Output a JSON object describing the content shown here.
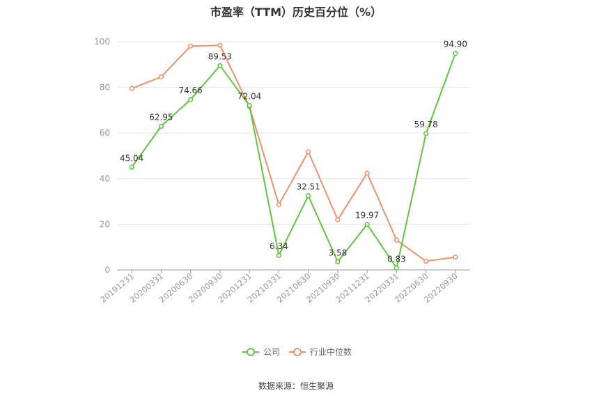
{
  "chart_data": {
    "type": "line",
    "title": "市盈率（TTM）历史百分位（%）",
    "categories": [
      "20191231",
      "20200331",
      "20200630",
      "20200930",
      "20201231",
      "20210331",
      "20210630",
      "20210930",
      "20211231",
      "20220331",
      "20220630",
      "20220930"
    ],
    "ylim": [
      0,
      100
    ],
    "yticks": [
      0,
      20,
      40,
      60,
      80,
      100
    ],
    "grid": true,
    "legend_position": "bottom",
    "series": [
      {
        "name": "公司",
        "color": "#5cc73c",
        "show_labels": true,
        "values": [
          45.04,
          62.95,
          74.66,
          89.53,
          72.04,
          6.34,
          32.51,
          3.58,
          19.97,
          0.83,
          59.78,
          94.9
        ],
        "labels": [
          "45.04",
          "62.95",
          "74.66",
          "89.53",
          "72.04",
          "6.34",
          "32.51",
          "3.58",
          "19.97",
          "0.83",
          "59.78",
          "94.90"
        ]
      },
      {
        "name": "行业中位数",
        "color": "#f0906a",
        "show_labels": false,
        "values": [
          79.5,
          84.6,
          98.1,
          98.4,
          71.5,
          28.6,
          51.8,
          22.0,
          42.4,
          13.1,
          3.8,
          5.6
        ]
      }
    ]
  },
  "source_text": "数据来源：恒生聚源"
}
